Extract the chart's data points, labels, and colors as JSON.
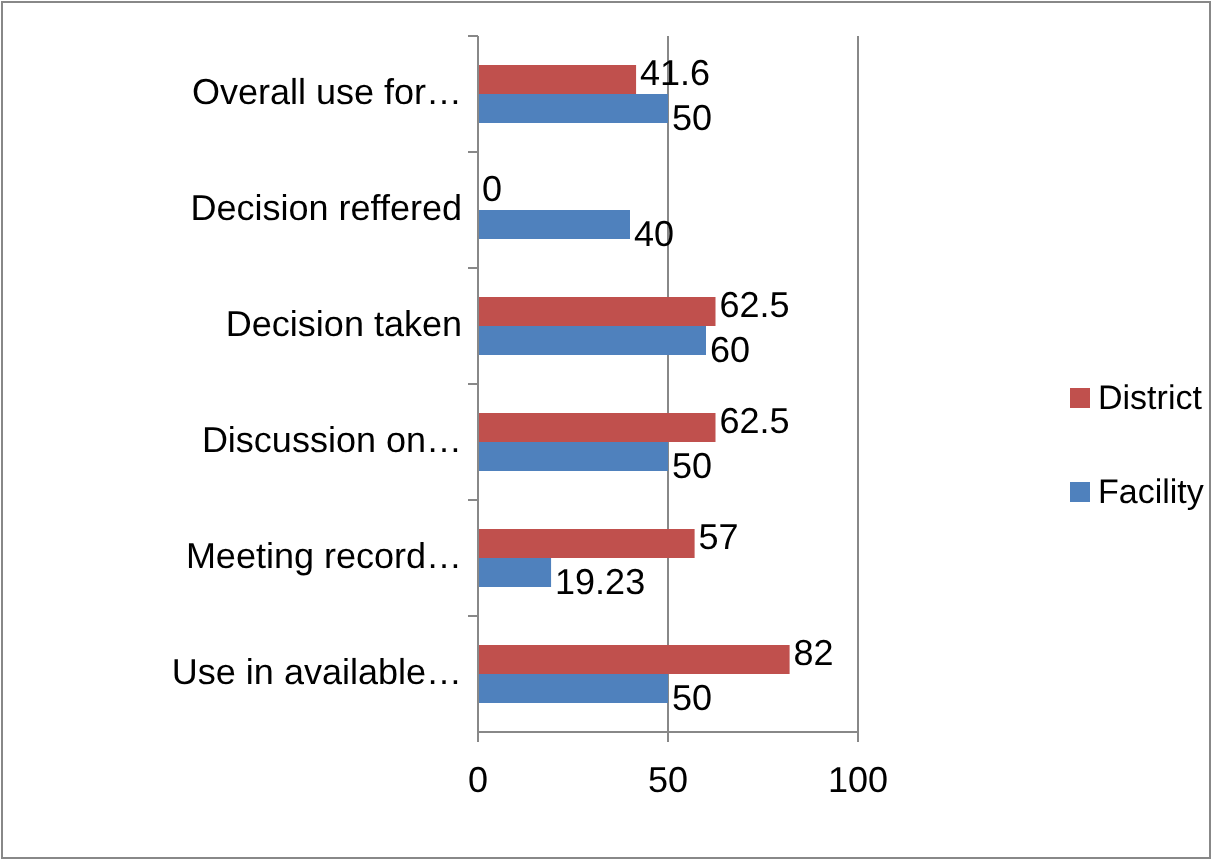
{
  "chart_data": {
    "type": "bar",
    "orientation": "horizontal",
    "categories": [
      "Overall use for…",
      "Decision reffered",
      "Decision taken",
      "Discussion on…",
      "Meeting record…",
      "Use in available…"
    ],
    "series": [
      {
        "name": "District",
        "color": "#c0504d",
        "values": [
          41.6,
          0,
          62.5,
          62.5,
          57,
          82
        ]
      },
      {
        "name": "Facility",
        "color": "#4f81bd",
        "values": [
          50,
          40,
          60,
          50,
          19.23,
          50
        ]
      }
    ],
    "xlim": [
      0,
      100
    ],
    "xticks": [
      0,
      50,
      100
    ],
    "grid": "x",
    "legend": "right",
    "data_labels": true
  }
}
